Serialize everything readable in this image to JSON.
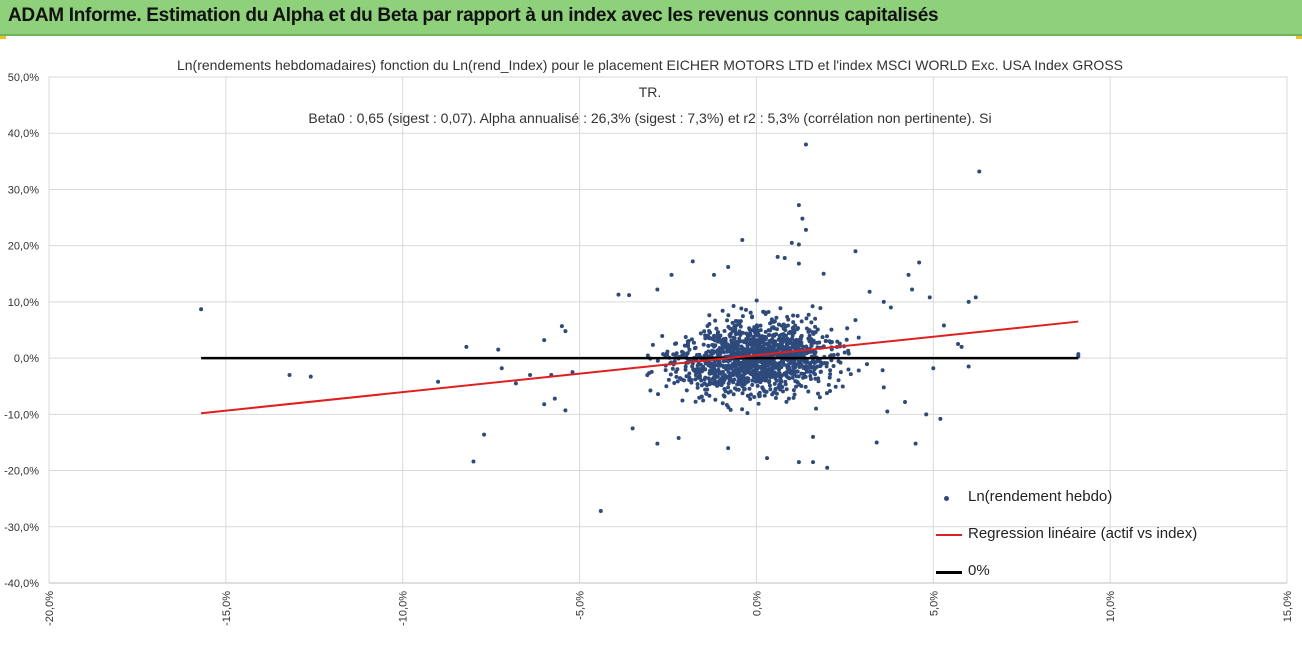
{
  "header": {
    "title": "ADAM Informe. Estimation du Alpha et du Beta par rapport à un index avec les revenus connus capitalisés",
    "accent_color": "#8fd07a"
  },
  "chart_data": {
    "type": "scatter",
    "title_lines": [
      "Ln(rendements hebdomadaires) fonction du Ln(rend_Index) pour le placement EICHER MOTORS LTD et l'index MSCI WORLD Exc. USA Index GROSS",
      "TR.",
      "Beta0 : 0,65  (sigest : 0,07).  Alpha annualisé : 26,3% (sigest : 7,3%) et r2 : 5,3% (corrélation non pertinente). Si"
    ],
    "xlim": [
      -0.2,
      0.15
    ],
    "ylim": [
      -0.4,
      0.5
    ],
    "x_ticks": [
      "-20,0%",
      "-15,0%",
      "-10,0%",
      "-5,0%",
      "0,0%",
      "5,0%",
      "10,0%",
      "15,0%"
    ],
    "y_ticks": [
      "-40,0%",
      "-30,0%",
      "-20,0%",
      "-10,0%",
      "0,0%",
      "10,0%",
      "20,0%",
      "30,0%",
      "40,0%",
      "50,0%"
    ],
    "grid": true,
    "legend_position": "bottom-right",
    "series": [
      {
        "name": "Ln(rendement hebdo)",
        "kind": "scatter",
        "color": "#2e4a7d",
        "cluster_center": [
          0.0,
          0.0
        ],
        "points": [
          [
            -0.157,
            0.087
          ],
          [
            -0.132,
            -0.03
          ],
          [
            -0.126,
            -0.033
          ],
          [
            -0.09,
            -0.042
          ],
          [
            -0.082,
            0.02
          ],
          [
            -0.08,
            -0.184
          ],
          [
            -0.077,
            -0.136
          ],
          [
            -0.073,
            0.015
          ],
          [
            -0.072,
            -0.018
          ],
          [
            -0.068,
            -0.045
          ],
          [
            -0.064,
            -0.03
          ],
          [
            -0.06,
            0.032
          ],
          [
            -0.06,
            -0.082
          ],
          [
            -0.058,
            -0.03
          ],
          [
            -0.057,
            -0.072
          ],
          [
            -0.055,
            0.057
          ],
          [
            -0.054,
            0.048
          ],
          [
            -0.054,
            -0.093
          ],
          [
            -0.052,
            -0.025
          ],
          [
            -0.044,
            -0.272
          ],
          [
            -0.039,
            0.113
          ],
          [
            -0.036,
            0.112
          ],
          [
            -0.035,
            -0.125
          ],
          [
            -0.028,
            0.122
          ],
          [
            -0.028,
            -0.152
          ],
          [
            -0.024,
            0.148
          ],
          [
            -0.022,
            -0.142
          ],
          [
            -0.018,
            0.172
          ],
          [
            -0.012,
            0.148
          ],
          [
            -0.008,
            0.162
          ],
          [
            -0.004,
            0.21
          ],
          [
            -0.008,
            -0.16
          ],
          [
            0.003,
            -0.178
          ],
          [
            0.006,
            0.18
          ],
          [
            0.008,
            0.178
          ],
          [
            0.01,
            0.205
          ],
          [
            0.012,
            0.168
          ],
          [
            0.012,
            -0.185
          ],
          [
            0.016,
            -0.14
          ],
          [
            0.019,
            0.15
          ],
          [
            0.02,
            -0.195
          ],
          [
            0.012,
            0.272
          ],
          [
            0.013,
            0.248
          ],
          [
            0.014,
            0.228
          ],
          [
            0.012,
            0.202
          ],
          [
            0.014,
            0.38
          ],
          [
            0.016,
            -0.185
          ],
          [
            0.028,
            0.19
          ],
          [
            0.032,
            0.118
          ],
          [
            0.034,
            -0.15
          ],
          [
            0.036,
            0.1
          ],
          [
            0.036,
            -0.052
          ],
          [
            0.037,
            -0.095
          ],
          [
            0.038,
            0.09
          ],
          [
            0.042,
            -0.078
          ],
          [
            0.043,
            0.148
          ],
          [
            0.044,
            0.122
          ],
          [
            0.045,
            -0.152
          ],
          [
            0.046,
            0.17
          ],
          [
            0.048,
            -0.1
          ],
          [
            0.049,
            0.108
          ],
          [
            0.05,
            -0.018
          ],
          [
            0.052,
            -0.108
          ],
          [
            0.053,
            0.058
          ],
          [
            0.057,
            0.025
          ],
          [
            0.058,
            0.02
          ],
          [
            0.06,
            0.1
          ],
          [
            0.06,
            -0.015
          ],
          [
            0.062,
            0.108
          ],
          [
            0.063,
            0.332
          ],
          [
            0.091,
            0.007
          ],
          [
            0.091,
            0.003
          ]
        ]
      },
      {
        "name": "Regression linéaire (actif vs index)",
        "kind": "line",
        "color": "#e02020",
        "points": [
          [
            -0.157,
            -0.098
          ],
          [
            0.091,
            0.065
          ]
        ]
      },
      {
        "name": "0%",
        "kind": "line",
        "color": "#000000",
        "points": [
          [
            -0.157,
            0.0
          ],
          [
            0.091,
            0.0
          ]
        ]
      }
    ]
  }
}
